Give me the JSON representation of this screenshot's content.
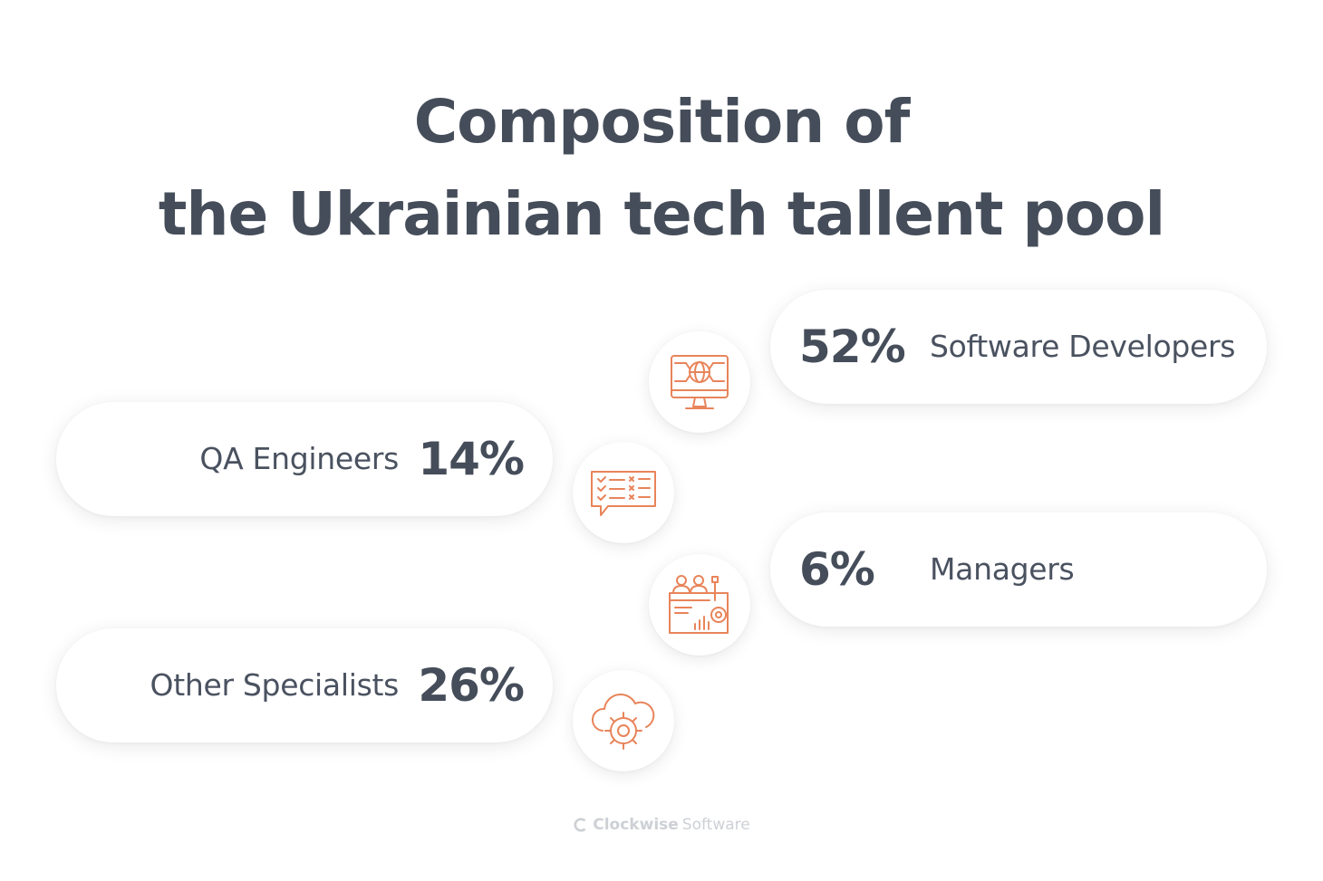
{
  "title": {
    "line1": "Composition of",
    "line2": "the Ukrainian tech tallent pool"
  },
  "items": [
    {
      "percent": "52%",
      "label": "Software Developers",
      "icon": "monitor-globe-icon"
    },
    {
      "percent": "14%",
      "label": "QA Engineers",
      "icon": "checklist-chat-icon"
    },
    {
      "percent": "6%",
      "label": "Managers",
      "icon": "team-dashboard-icon"
    },
    {
      "percent": "26%",
      "label": "Other Specialists",
      "icon": "cloud-gear-icon"
    }
  ],
  "footer": {
    "brand_bold": "Clockwise",
    "brand_light": "Software"
  },
  "colors": {
    "text": "#454d5a",
    "accent": "#e8845a",
    "footer": "#cdd0d5"
  }
}
